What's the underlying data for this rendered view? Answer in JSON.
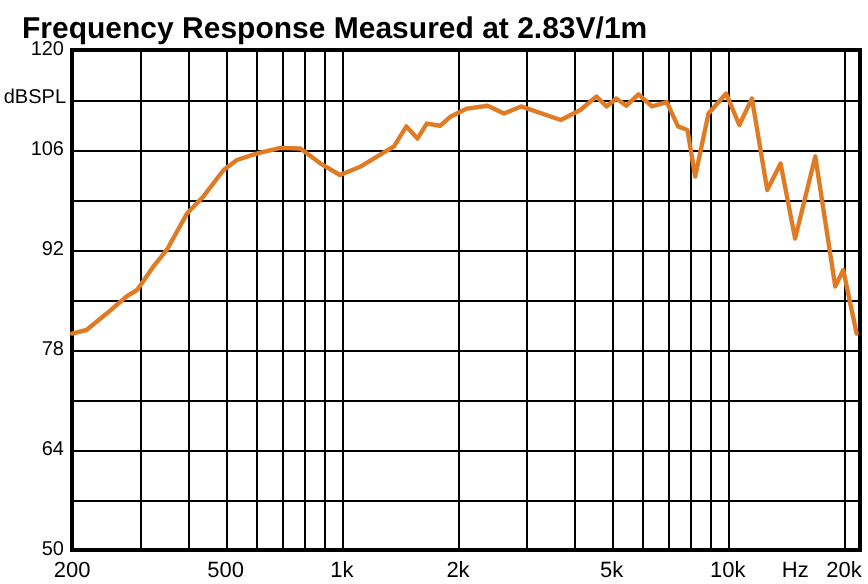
{
  "chart_data": {
    "type": "line",
    "title": "Frequency Response Measured at 2.83V/1m",
    "xlabel": "Hz",
    "ylabel": "dBSPL",
    "log": "x",
    "grid": true,
    "marker": "none",
    "line_style": "solid",
    "xlim": [
      200,
      22000
    ],
    "ylim": [
      50,
      120
    ],
    "xticks": [
      200,
      {
        "value": 300,
        "label": null
      },
      {
        "value": 400,
        "label": null
      },
      500,
      {
        "value": 600,
        "label": null
      },
      {
        "value": 700,
        "label": null
      },
      {
        "value": 800,
        "label": null
      },
      {
        "value": 900,
        "label": null
      },
      {
        "value": 1000,
        "label": "1k"
      },
      {
        "value": 2000,
        "label": "2k"
      },
      {
        "value": 3000,
        "label": null
      },
      {
        "value": 4000,
        "label": null
      },
      {
        "value": 5000,
        "label": "5k"
      },
      {
        "value": 6000,
        "label": null
      },
      {
        "value": 7000,
        "label": null
      },
      {
        "value": 8000,
        "label": null
      },
      {
        "value": 9000,
        "label": null
      },
      {
        "value": 10000,
        "label": "10k"
      },
      {
        "value": 20000,
        "label": "20k"
      }
    ],
    "yticks": [
      50,
      {
        "value": 57,
        "label": null
      },
      64,
      {
        "value": 71,
        "label": null
      },
      78,
      {
        "value": 85,
        "label": null
      },
      92,
      {
        "value": 99,
        "label": null
      },
      106,
      {
        "value": 113,
        "label": null
      },
      120
    ],
    "series": [
      {
        "color": "#e07b24",
        "x": [
          200,
          218,
          246,
          277,
          295,
          325,
          352,
          397,
          438,
          494,
          535,
          601,
          694,
          781,
          881,
          989,
          1120,
          1365,
          1470,
          1570,
          1660,
          1800,
          1916,
          2109,
          2387,
          2630,
          2913,
          3692,
          4150,
          4570,
          4850,
          5140,
          5460,
          5870,
          6360,
          6950,
          7430,
          7860,
          8230,
          8910,
          9900,
          10710,
          11550,
          12650,
          13700,
          14940,
          16850,
          18980,
          19910,
          21560
        ],
        "values": [
          80.3,
          80.8,
          83.1,
          85.5,
          86.4,
          89.7,
          92,
          97.1,
          99.5,
          103.2,
          104.6,
          105.5,
          106.3,
          106.2,
          104.1,
          102.5,
          103.7,
          106.5,
          109.3,
          107.6,
          109.7,
          109.4,
          110.7,
          111.8,
          112.2,
          111.1,
          112.1,
          110.2,
          111.6,
          113.5,
          112.1,
          113.2,
          112.2,
          113.8,
          112.1,
          112.7,
          109.3,
          108.8,
          102.3,
          111.1,
          113.9,
          109.5,
          113.2,
          100.4,
          104.1,
          93.6,
          105.1,
          86.9,
          89.2,
          80.3
        ]
      }
    ]
  }
}
